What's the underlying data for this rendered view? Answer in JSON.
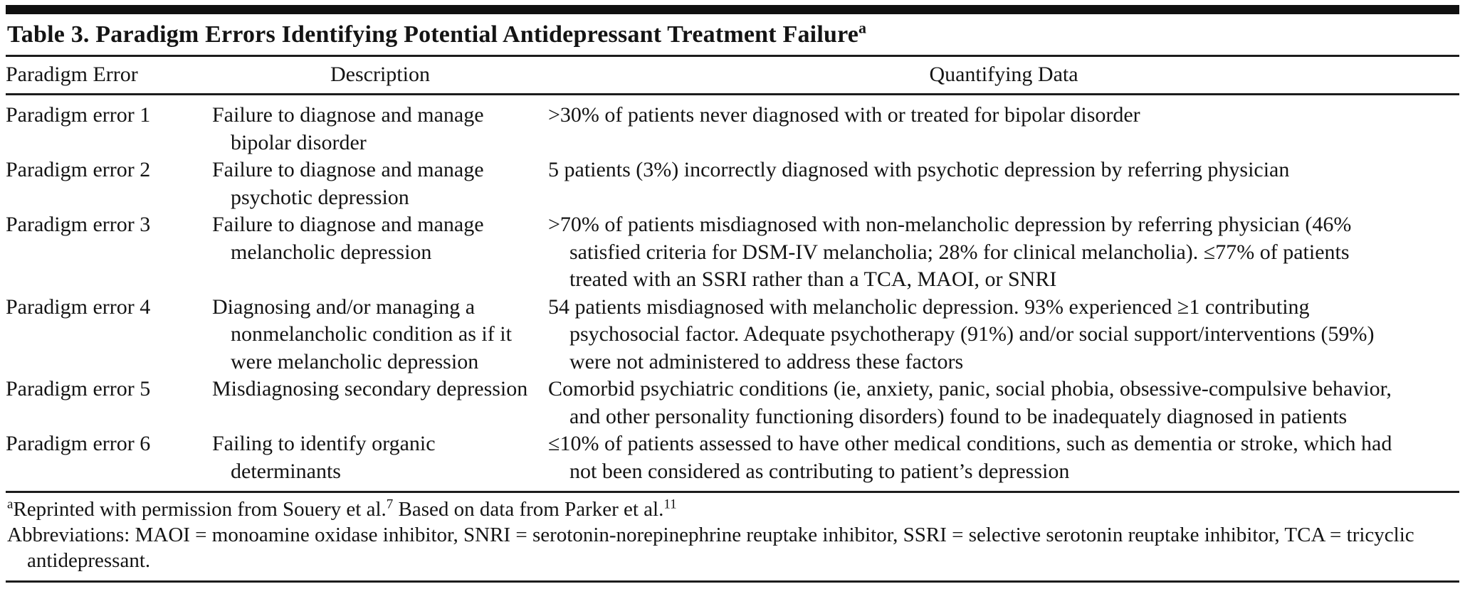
{
  "table": {
    "title": "Table 3. Paradigm Errors Identifying Potential Antidepressant Treatment Failure",
    "title_footnote_marker": "a",
    "columns": [
      "Paradigm Error",
      "Description",
      "Quantifying Data"
    ],
    "rows": [
      {
        "error": "Paradigm error 1",
        "description": "Failure to diagnose and manage bipolar disorder",
        "quantifying_data": ">30% of patients never diagnosed with or treated for bipolar disorder"
      },
      {
        "error": "Paradigm error 2",
        "description": "Failure to diagnose and manage psychotic depression",
        "quantifying_data": "5 patients (3%) incorrectly diagnosed with psychotic depression by referring physician"
      },
      {
        "error": "Paradigm error 3",
        "description": "Failure to diagnose and manage melancholic depression",
        "quantifying_data": ">70% of patients misdiagnosed with non-melancholic depression by referring physician (46% satisfied criteria for DSM-IV melancholia; 28% for clinical melancholia). ≤77% of patients treated with an SSRI rather than a TCA, MAOI, or SNRI"
      },
      {
        "error": "Paradigm error 4",
        "description": "Diagnosing and/or managing a nonmelancholic condition as if it were melancholic depression",
        "quantifying_data": "54 patients misdiagnosed with melancholic depression. 93% experienced ≥1 contributing psychosocial factor. Adequate psychotherapy (91%) and/or social support/interventions (59%) were not administered to address these factors"
      },
      {
        "error": "Paradigm error 5",
        "description": "Misdiagnosing secondary depression",
        "quantifying_data": "Comorbid psychiatric conditions (ie, anxiety, panic, social phobia, obsessive-compulsive behavior, and other personality functioning disorders) found to be inadequately diagnosed in patients"
      },
      {
        "error": "Paradigm error 6",
        "description": "Failing to identify organic determinants",
        "quantifying_data": "≤10% of patients assessed to have other medical conditions, such as dementia or stroke, which had not been considered as contributing to patient’s depression"
      }
    ],
    "footnotes": {
      "marker": "a",
      "source_part1": "Reprinted with permission from Souery et al.",
      "source_ref1": "7",
      "source_part2": " Based on data from Parker et al.",
      "source_ref2": "11",
      "abbreviations": "Abbreviations: MAOI = monoamine oxidase inhibitor, SNRI = serotonin-norepinephrine reuptake inhibitor, SSRI = selective serotonin reuptake inhibitor, TCA = tricyclic antidepressant."
    }
  },
  "colors": {
    "text": "#141414",
    "rule": "#1c1c1c",
    "background": "#ffffff"
  }
}
